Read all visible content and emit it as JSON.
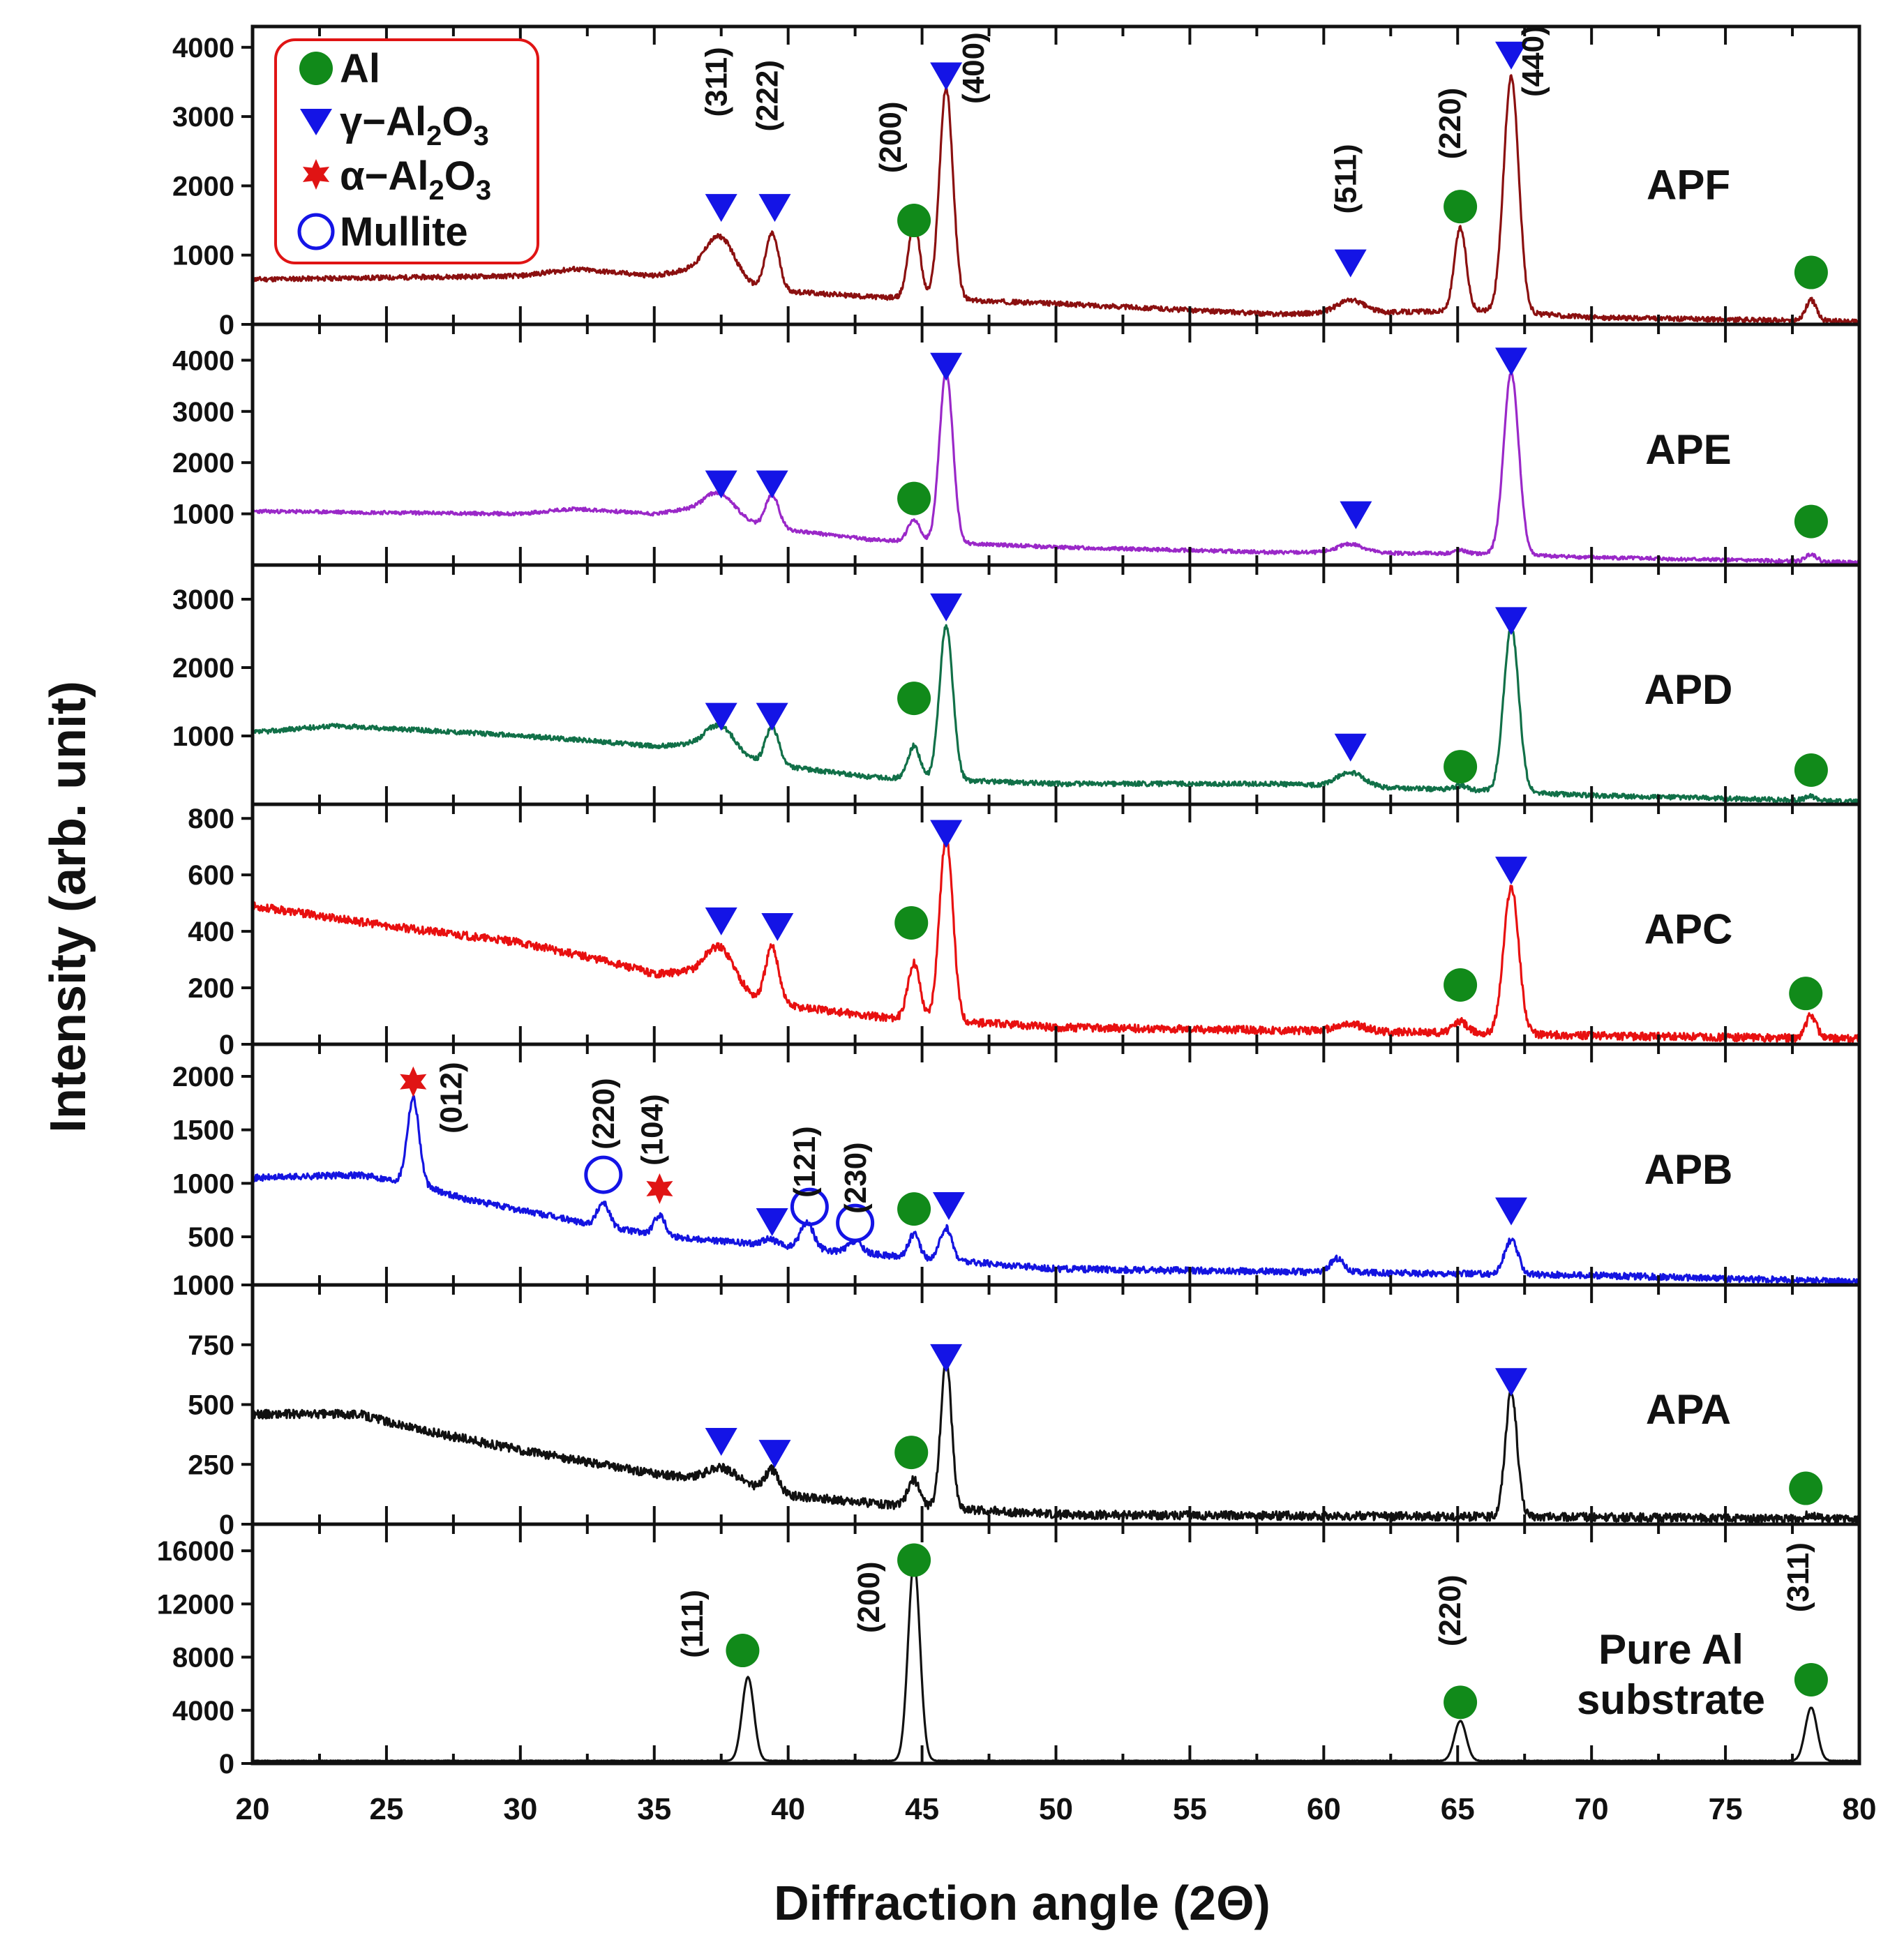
{
  "chart_data": {
    "type": "line",
    "xlabel": "Diffraction angle (2Θ)",
    "ylabel": "Intensity (arb. unit)",
    "xlim": [
      20,
      80
    ],
    "xticks": [
      "20",
      "25",
      "30",
      "35",
      "40",
      "45",
      "50",
      "55",
      "60",
      "65",
      "70",
      "75",
      "80"
    ],
    "legend": {
      "placement": "top-left",
      "entries": [
        {
          "symbol": "circle-filled",
          "color": "#118a1a",
          "parts": [
            [
              "Al",
              ""
            ]
          ]
        },
        {
          "symbol": "triangle-down",
          "color": "#1414e6",
          "parts": [
            [
              "γ−Al",
              ""
            ],
            [
              "2",
              "sub"
            ],
            [
              "O",
              ""
            ],
            [
              "3",
              "sub"
            ]
          ]
        },
        {
          "symbol": "star",
          "color": "#e01414",
          "parts": [
            [
              "α−Al",
              ""
            ],
            [
              "2",
              "sub"
            ],
            [
              "O",
              ""
            ],
            [
              "3",
              "sub"
            ]
          ]
        },
        {
          "symbol": "circle-open",
          "color": "#1414e6",
          "parts": [
            [
              "Mullite",
              ""
            ]
          ]
        }
      ]
    },
    "panels": [
      {
        "name": "APF",
        "label_lines": [
          "APF"
        ],
        "color": "#8b1010",
        "ylim": [
          0,
          4300
        ],
        "yticks": [
          0,
          1000,
          2000,
          3000,
          4000
        ],
        "ytick_labels": [
          "0",
          "1000",
          "2000",
          "3000",
          "4000"
        ],
        "baseline": [
          [
            20,
            650
          ],
          [
            30,
            700
          ],
          [
            32,
            800
          ],
          [
            35,
            700
          ],
          [
            37,
            850
          ],
          [
            39,
            500
          ],
          [
            43,
            400
          ],
          [
            50,
            300
          ],
          [
            58,
            150
          ],
          [
            66,
            200
          ],
          [
            70,
            100
          ],
          [
            80,
            40
          ]
        ],
        "peaks": [
          [
            37.5,
            500,
            0.5
          ],
          [
            39.4,
            820,
            0.25
          ],
          [
            44.7,
            1100,
            0.22
          ],
          [
            45.9,
            3050,
            0.25
          ],
          [
            61,
            180,
            0.5
          ],
          [
            65.1,
            1200,
            0.22
          ],
          [
            67.0,
            3400,
            0.28
          ],
          [
            78.2,
            300,
            0.2
          ]
        ],
        "noise": 35,
        "seed": 11,
        "markers": [
          [
            37.5,
            1700,
            "tri"
          ],
          [
            39.5,
            1700,
            "tri"
          ],
          [
            44.7,
            1500,
            "circ"
          ],
          [
            45.9,
            3600,
            "tri"
          ],
          [
            61.0,
            900,
            "tri"
          ],
          [
            65.1,
            1700,
            "circ"
          ],
          [
            67.0,
            3900,
            "tri"
          ],
          [
            78.2,
            750,
            "circ"
          ]
        ],
        "annotations": [
          [
            "(311)",
            37.7,
            3500
          ],
          [
            "(222)",
            39.6,
            3300
          ],
          [
            "(200)",
            44.2,
            2700
          ],
          [
            "(400)",
            47.3,
            3700
          ],
          [
            "(511)",
            61.2,
            2100
          ],
          [
            "(220)",
            65.1,
            2900
          ],
          [
            "(440)",
            68.2,
            3800
          ]
        ]
      },
      {
        "name": "APE",
        "label_lines": [
          "APE"
        ],
        "color": "#9a28c8",
        "ylim": [
          0,
          4700
        ],
        "yticks": [
          1000,
          2000,
          3000,
          4000
        ],
        "ytick_labels": [
          "1000",
          "2000",
          "3000",
          "4000"
        ],
        "baseline": [
          [
            20,
            1050
          ],
          [
            30,
            1000
          ],
          [
            32,
            1100
          ],
          [
            35,
            1000
          ],
          [
            37,
            1150
          ],
          [
            39,
            750
          ],
          [
            43,
            500
          ],
          [
            50,
            350
          ],
          [
            58,
            250
          ],
          [
            66,
            220
          ],
          [
            70,
            150
          ],
          [
            80,
            50
          ]
        ],
        "peaks": [
          [
            37.5,
            350,
            0.5
          ],
          [
            39.4,
            650,
            0.25
          ],
          [
            44.7,
            420,
            0.22
          ],
          [
            45.9,
            3350,
            0.25
          ],
          [
            61,
            170,
            0.5
          ],
          [
            65.1,
            60,
            0.25
          ],
          [
            67.0,
            3550,
            0.28
          ],
          [
            78.2,
            150,
            0.2
          ]
        ],
        "noise": 35,
        "seed": 23,
        "markers": [
          [
            37.5,
            1600,
            "tri"
          ],
          [
            39.4,
            1600,
            "tri"
          ],
          [
            44.7,
            1300,
            "circ"
          ],
          [
            45.9,
            3900,
            "tri"
          ],
          [
            61.2,
            1000,
            "tri"
          ],
          [
            67.0,
            4000,
            "tri"
          ],
          [
            78.2,
            850,
            "circ"
          ]
        ],
        "annotations": []
      },
      {
        "name": "APD",
        "label_lines": [
          "APD"
        ],
        "color": "#117048",
        "ylim": [
          0,
          3500
        ],
        "yticks": [
          1000,
          2000,
          3000
        ],
        "ytick_labels": [
          "1000",
          "2000",
          "3000"
        ],
        "baseline": [
          [
            20,
            1050
          ],
          [
            23,
            1150
          ],
          [
            28,
            1050
          ],
          [
            32,
            950
          ],
          [
            35,
            850
          ],
          [
            37,
            900
          ],
          [
            39,
            600
          ],
          [
            43,
            400
          ],
          [
            50,
            300
          ],
          [
            58,
            300
          ],
          [
            66,
            200
          ],
          [
            70,
            130
          ],
          [
            80,
            40
          ]
        ],
        "peaks": [
          [
            37.5,
            320,
            0.5
          ],
          [
            39.4,
            550,
            0.25
          ],
          [
            44.7,
            480,
            0.22
          ],
          [
            45.9,
            2250,
            0.25
          ],
          [
            61,
            200,
            0.5
          ],
          [
            65.1,
            60,
            0.25
          ],
          [
            67.0,
            2400,
            0.28
          ],
          [
            78.2,
            60,
            0.2
          ]
        ],
        "noise": 35,
        "seed": 37,
        "markers": [
          [
            37.5,
            1300,
            "tri"
          ],
          [
            39.4,
            1300,
            "tri"
          ],
          [
            44.7,
            1550,
            "circ"
          ],
          [
            45.9,
            2900,
            "tri"
          ],
          [
            61.0,
            850,
            "tri"
          ],
          [
            65.1,
            550,
            "circ"
          ],
          [
            67.0,
            2700,
            "tri"
          ],
          [
            78.2,
            500,
            "circ"
          ]
        ],
        "annotations": []
      },
      {
        "name": "APC",
        "label_lines": [
          "APC"
        ],
        "color": "#e81010",
        "ylim": [
          0,
          850
        ],
        "yticks": [
          0,
          200,
          400,
          600,
          800
        ],
        "ytick_labels": [
          "0",
          "200",
          "400",
          "600",
          "800"
        ],
        "baseline": [
          [
            20,
            490
          ],
          [
            25,
            420
          ],
          [
            30,
            360
          ],
          [
            33,
            300
          ],
          [
            35,
            250
          ],
          [
            37,
            260
          ],
          [
            39,
            150
          ],
          [
            43,
            100
          ],
          [
            50,
            60
          ],
          [
            58,
            50
          ],
          [
            66,
            40
          ],
          [
            70,
            30
          ],
          [
            80,
            20
          ]
        ],
        "peaks": [
          [
            37.5,
            110,
            0.5
          ],
          [
            39.4,
            200,
            0.25
          ],
          [
            44.7,
            200,
            0.22
          ],
          [
            45.9,
            650,
            0.25
          ],
          [
            61,
            25,
            0.5
          ],
          [
            65.1,
            40,
            0.25
          ],
          [
            67.0,
            520,
            0.28
          ],
          [
            78.2,
            80,
            0.2
          ]
        ],
        "noise": 14,
        "seed": 53,
        "markers": [
          [
            37.5,
            440,
            "tri"
          ],
          [
            39.6,
            420,
            "tri"
          ],
          [
            44.6,
            430,
            "circ"
          ],
          [
            45.9,
            750,
            "tri"
          ],
          [
            65.1,
            210,
            "circ"
          ],
          [
            67.0,
            620,
            "tri"
          ],
          [
            78.0,
            180,
            "circ"
          ]
        ],
        "annotations": []
      },
      {
        "name": "APB",
        "label_lines": [
          "APB"
        ],
        "color": "#1414e0",
        "ylim": [
          50,
          2300
        ],
        "yticks": [
          500,
          1000,
          1500,
          2000
        ],
        "ytick_labels": [
          "500",
          "1000",
          "1500",
          "2000"
        ],
        "baseline": [
          [
            20,
            1050
          ],
          [
            24,
            1080
          ],
          [
            26,
            1000
          ],
          [
            28,
            850
          ],
          [
            32,
            650
          ],
          [
            35,
            520
          ],
          [
            40,
            400
          ],
          [
            45,
            300
          ],
          [
            50,
            200
          ],
          [
            60,
            170
          ],
          [
            70,
            140
          ],
          [
            80,
            80
          ]
        ],
        "peaks": [
          [
            26.0,
            800,
            0.22
          ],
          [
            33.1,
            220,
            0.22
          ],
          [
            35.2,
            190,
            0.2
          ],
          [
            39.3,
            60,
            0.3
          ],
          [
            40.7,
            250,
            0.25
          ],
          [
            42.5,
            110,
            0.25
          ],
          [
            44.7,
            220,
            0.2
          ],
          [
            45.9,
            300,
            0.22
          ],
          [
            60.5,
            130,
            0.25
          ],
          [
            67.0,
            320,
            0.25
          ]
        ],
        "noise": 30,
        "seed": 71,
        "markers": [
          [
            26.0,
            1950,
            "star"
          ],
          [
            33.1,
            1080,
            "ocirc"
          ],
          [
            35.2,
            950,
            "star"
          ],
          [
            39.4,
            650,
            "tri"
          ],
          [
            40.8,
            780,
            "ocirc"
          ],
          [
            42.5,
            630,
            "ocirc"
          ],
          [
            44.7,
            760,
            "circ"
          ],
          [
            46.0,
            800,
            "tri"
          ],
          [
            67.0,
            750,
            "tri"
          ]
        ],
        "annotations": [
          [
            "(012)",
            27.8,
            1800
          ],
          [
            "(220)",
            33.5,
            1650
          ],
          [
            "(104)",
            35.3,
            1500
          ],
          [
            "(121)",
            41.0,
            1200
          ],
          [
            "(230)",
            42.9,
            1050
          ]
        ]
      },
      {
        "name": "APA",
        "label_lines": [
          "APA"
        ],
        "color": "#111111",
        "ylim": [
          0,
          1000
        ],
        "yticks": [
          0,
          250,
          500,
          750,
          1000
        ],
        "ytick_labels": [
          "0",
          "250",
          "500",
          "750",
          "1000"
        ],
        "baseline": [
          [
            20,
            460
          ],
          [
            24,
            460
          ],
          [
            26,
            400
          ],
          [
            30,
            310
          ],
          [
            35,
            210
          ],
          [
            38,
            180
          ],
          [
            40,
            120
          ],
          [
            44,
            80
          ],
          [
            50,
            40
          ],
          [
            60,
            35
          ],
          [
            70,
            30
          ],
          [
            80,
            20
          ]
        ],
        "peaks": [
          [
            37.5,
            50,
            0.5
          ],
          [
            39.4,
            90,
            0.25
          ],
          [
            44.7,
            110,
            0.22
          ],
          [
            45.9,
            620,
            0.2
          ],
          [
            67.0,
            520,
            0.22
          ],
          [
            78.2,
            20,
            0.2
          ]
        ],
        "noise": 18,
        "seed": 89,
        "markers": [
          [
            37.5,
            350,
            "tri"
          ],
          [
            39.5,
            300,
            "tri"
          ],
          [
            44.6,
            300,
            "circ"
          ],
          [
            45.9,
            700,
            "tri"
          ],
          [
            67.0,
            600,
            "tri"
          ],
          [
            78.0,
            150,
            "circ"
          ]
        ],
        "annotations": []
      },
      {
        "name": "Pure Al substrate",
        "label_lines": [
          "Pure Al",
          "substrate"
        ],
        "color": "#111111",
        "ylim": [
          0,
          18000
        ],
        "yticks": [
          0,
          4000,
          8000,
          12000,
          16000
        ],
        "ytick_labels": [
          "0",
          "4000",
          "8000",
          "12000",
          "16000"
        ],
        "baseline": [
          [
            20,
            200
          ],
          [
            80,
            200
          ]
        ],
        "peaks": [
          [
            38.5,
            6300,
            0.22
          ],
          [
            44.7,
            15000,
            0.22
          ],
          [
            65.1,
            3000,
            0.22
          ],
          [
            78.2,
            4000,
            0.22
          ]
        ],
        "noise": 20,
        "seed": 97,
        "markers": [
          [
            38.3,
            8500,
            "circ"
          ],
          [
            44.7,
            15300,
            "circ"
          ],
          [
            65.1,
            4600,
            "circ"
          ],
          [
            78.2,
            6300,
            "circ"
          ]
        ],
        "annotations": [
          [
            "(111)",
            36.8,
            10500
          ],
          [
            "(200)",
            43.4,
            12500
          ],
          [
            "(220)",
            65.1,
            11500
          ],
          [
            "(311)",
            78.1,
            14000
          ]
        ]
      }
    ]
  }
}
